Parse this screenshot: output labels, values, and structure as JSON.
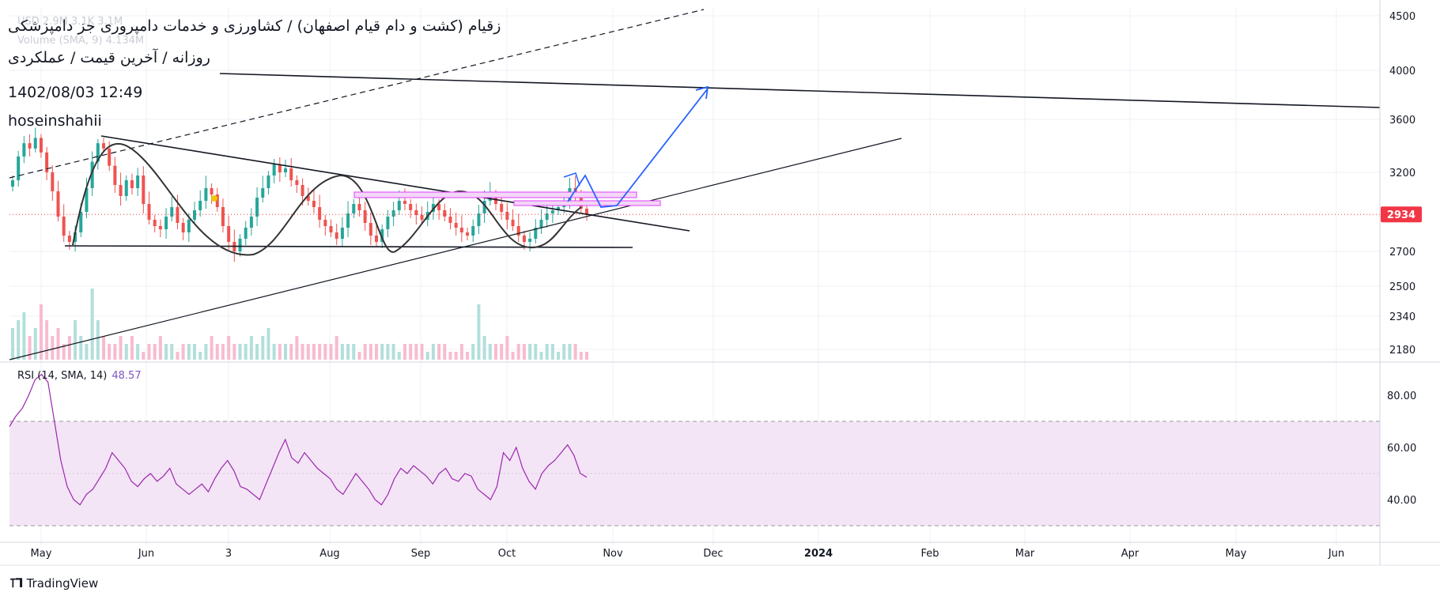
{
  "header": {
    "title": "زقیام (کشت و دام قیام اصفهان) / کشاورزی و خدمات دامپروری جز دامپزشکی",
    "subtitle": "روزانه / آخرین قیمت / عملکردی",
    "datetime": "1402/08/03 12:49",
    "author": "hoseinshahii",
    "ghost_ohlc": "USD 2.9M  3.1K  3.1M",
    "volume_label": "Volume (SMA, 9)  4.134M"
  },
  "rsi": {
    "label": "RSI (14, SMA, 14)",
    "value": "48.57"
  },
  "brand": {
    "name": "TradingView"
  },
  "colors": {
    "up": "#26a69a",
    "down": "#ef5350",
    "vol_up": "#b2dfdb",
    "vol_down": "#f8bbd0",
    "rsi_line": "#9c27b0",
    "rsi_band": "#f3e5f5",
    "last_price": "#f23645",
    "arrow": "#2962ff",
    "zone": "#e040fb"
  },
  "chart_data": [
    {
      "type": "candlestick",
      "title": "زقیام (کشت و دام قیام اصفهان) / کشاورزی و خدمات دامپروری جز دامپزشکی",
      "xlabel": "",
      "ylabel": "",
      "x_ticks": [
        "May",
        "Jun",
        "3",
        "Aug",
        "Sep",
        "Oct",
        "Nov",
        "Dec",
        "2024",
        "Feb",
        "Mar",
        "Apr",
        "May",
        "Jun"
      ],
      "y_ticks": [
        4500,
        4000,
        3600,
        3200,
        2934,
        2700,
        2500,
        2340,
        2180
      ],
      "last_price": "2934",
      "close_series": [
        3150,
        3320,
        3420,
        3380,
        3460,
        3350,
        3200,
        3080,
        2920,
        2800,
        2760,
        2820,
        2950,
        3100,
        3280,
        3420,
        3380,
        3250,
        3120,
        3050,
        3150,
        3100,
        3180,
        3000,
        2900,
        2860,
        2840,
        2920,
        2980,
        2880,
        2820,
        2900,
        2960,
        3020,
        3100,
        3060,
        2980,
        2860,
        2760,
        2700,
        2780,
        2850,
        2920,
        3040,
        3100,
        3180,
        3260,
        3200,
        3230,
        3150,
        3120,
        3050,
        3020,
        2980,
        2900,
        2860,
        2820,
        2780,
        2850,
        2940,
        3000,
        2960,
        2880,
        2800,
        2760,
        2840,
        2920,
        2960,
        3020,
        3000,
        2960,
        2930,
        2900,
        2950,
        3000,
        2960,
        2920,
        2880,
        2850,
        2820,
        2800,
        2860,
        2940,
        3020,
        3060,
        3000,
        2950,
        2900,
        2860,
        2800,
        2760,
        2780,
        2850,
        2900,
        2940,
        2960,
        2980,
        3020,
        3100,
        3060,
        2970,
        2934
      ],
      "annotations": [
        "descending triangle",
        "support line",
        "ascending trend line",
        "target arrow"
      ]
    },
    {
      "type": "bar",
      "title": "Volume (SMA, 9)",
      "values_m": [
        4,
        5,
        6,
        3,
        4,
        7,
        5,
        3,
        4,
        2,
        3,
        5,
        3,
        2,
        9,
        5,
        3,
        2,
        2,
        3,
        2,
        3,
        2,
        1,
        2,
        2,
        3,
        2,
        2,
        1,
        2,
        2,
        2,
        1,
        2,
        3,
        2,
        2,
        3,
        2,
        2,
        2,
        3,
        2,
        3,
        4,
        2,
        2,
        2,
        2,
        3,
        2,
        2,
        2,
        2,
        2,
        2,
        3,
        2,
        2,
        2,
        1,
        2,
        2,
        2,
        2,
        2,
        2,
        1,
        2,
        2,
        2,
        2,
        1,
        2,
        2,
        2,
        1,
        1,
        2,
        1,
        2,
        7,
        3,
        2,
        2,
        2,
        3,
        1,
        2,
        2,
        2,
        2,
        1,
        2,
        2,
        1,
        2,
        2,
        2,
        1,
        1
      ]
    },
    {
      "type": "line",
      "title": "RSI (14, SMA, 14)",
      "y_ticks": [
        80.0,
        60.0,
        40.0
      ],
      "band": [
        30,
        70
      ],
      "values": [
        68,
        72,
        75,
        80,
        86,
        88,
        85,
        70,
        55,
        45,
        40,
        38,
        42,
        44,
        48,
        52,
        58,
        55,
        52,
        47,
        45,
        48,
        50,
        47,
        49,
        52,
        46,
        44,
        42,
        44,
        46,
        43,
        48,
        52,
        55,
        51,
        45,
        44,
        42,
        40,
        46,
        52,
        58,
        63,
        56,
        54,
        58,
        55,
        52,
        50,
        48,
        44,
        42,
        46,
        50,
        47,
        44,
        40,
        38,
        42,
        48,
        52,
        50,
        53,
        51,
        49,
        46,
        50,
        52,
        48,
        47,
        50,
        49,
        44,
        42,
        40,
        45,
        58,
        55,
        60,
        52,
        47,
        44,
        50,
        53,
        55,
        58,
        61,
        57,
        50,
        48.57
      ]
    }
  ]
}
